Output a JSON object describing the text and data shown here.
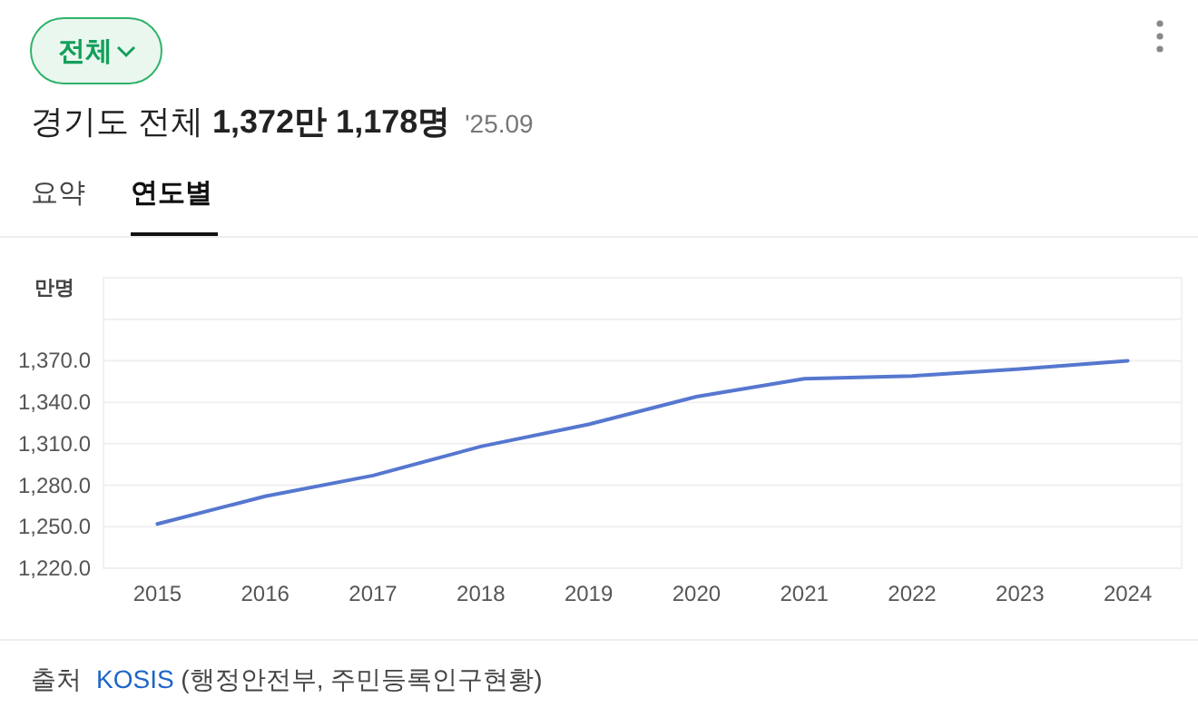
{
  "chart_data": {
    "type": "line",
    "title": "경기도 전체 **1,372만 1,178명**",
    "subtitle": "'25.09",
    "ylabel": "만명",
    "annotations": [
      "전체",
      "요약",
      "연도별",
      "출처",
      "KOSIS (행정안전부, 주민등록인구현황)"
    ],
    "categories": [
      "2015",
      "2016",
      "2017",
      "2018",
      "2019",
      "2020",
      "2021",
      "2022",
      "2023",
      "2024"
    ],
    "series": [
      {
        "color": "#5677cf",
        "values": [
          1252,
          1272,
          1287,
          1308,
          1324,
          1344,
          1357,
          1359,
          1364,
          1370
        ]
      }
    ],
    "ylim": [
      1220,
      1430
    ],
    "yticks": [
      {
        "value": 1220,
        "label": "1,220.0"
      },
      {
        "value": 1250,
        "label": "1,250.0"
      },
      {
        "value": 1280,
        "label": "1,280.0"
      },
      {
        "value": 1310,
        "label": "1,310.0"
      },
      {
        "value": 1340,
        "label": "1,340.0"
      },
      {
        "value": 1370,
        "label": "1,370.0"
      },
      {
        "value": 1400,
        "label": null
      },
      {
        "value": 1430,
        "label": null
      }
    ],
    "grid": "y",
    "marker": "none",
    "line_style": "solid"
  }
}
